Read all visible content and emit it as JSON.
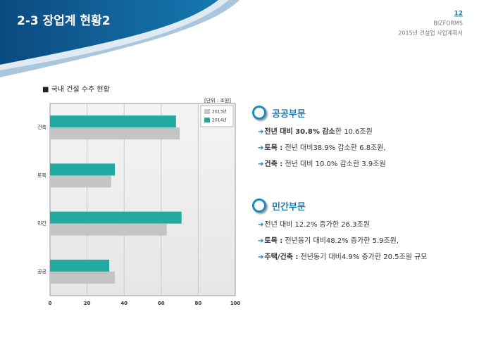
{
  "header": {
    "title": "2-3 장업계 현황2",
    "page": "12",
    "brand": "BIZFORMS",
    "doc": "2015년 건설업 사업계획서"
  },
  "chart_data": {
    "type": "bar",
    "orientation": "horizontal",
    "title": "■ 국내 건설 수주 현황",
    "unit": "[단위 : 조원]",
    "categories": [
      "건축",
      "토목",
      "민간",
      "공공"
    ],
    "series": [
      {
        "name": "2013년",
        "color": "#c4c4c4",
        "values": [
          70,
          33,
          63,
          35
        ]
      },
      {
        "name": "2014년",
        "color": "#22aaa0",
        "values": [
          68,
          35,
          71,
          32
        ]
      }
    ],
    "xlim": [
      0,
      100
    ],
    "xticks": [
      0,
      20,
      40,
      60,
      80,
      100
    ],
    "grid": true
  },
  "sections": [
    {
      "heading": "공공부문",
      "items": [
        [
          "전년 대비 30.8% 감소",
          "한 10.6조원"
        ],
        [
          "토목 :",
          " 전년 대비38.9% 감소한 6.8조원,"
        ],
        [
          "건축 :",
          " 전년 대비 10.0% 감소한 3.9조원"
        ]
      ]
    },
    {
      "heading": "민간부문",
      "items": [
        [
          "",
          "전년 대비 12.2% 증가한 26.3조원"
        ],
        [
          "토목 :",
          " 전년동기 대비48.2% 증가한 5.9조원,"
        ],
        [
          "주택/건축 :",
          " 전년동기 대비4.9% 증가한 20.5조원 규모"
        ]
      ]
    }
  ]
}
